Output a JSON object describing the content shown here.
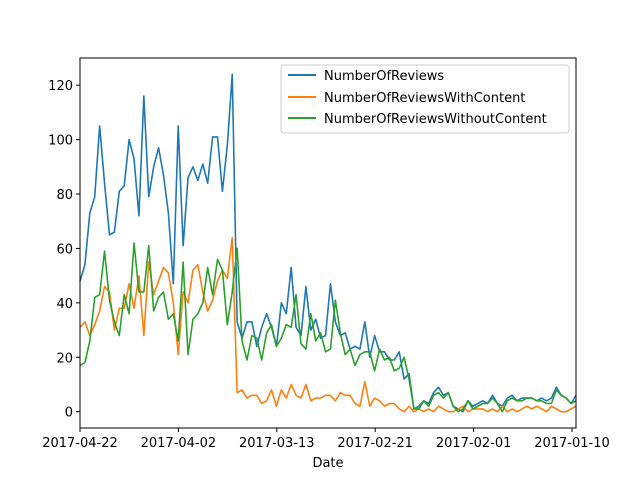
{
  "chart_data": {
    "type": "line",
    "xlabel": "Date",
    "ylabel": "",
    "x_axis_reversed": true,
    "x_ticks": [
      "2017-04-22",
      "2017-04-02",
      "2017-03-13",
      "2017-02-21",
      "2017-02-01",
      "2017-01-10"
    ],
    "y_ticks": [
      "0",
      "20",
      "40",
      "60",
      "80",
      "100",
      "120"
    ],
    "ylim": [
      -6,
      130
    ],
    "grid": false,
    "legend_position": "upper-right",
    "series": [
      {
        "name": "NumberOfReviews",
        "color": "#1f77b4",
        "values": [
          48,
          54,
          73,
          79,
          105,
          84,
          65,
          66,
          81,
          83,
          100,
          93,
          72,
          116,
          79,
          90,
          97,
          87,
          73,
          47,
          105,
          61,
          86,
          90,
          85,
          91,
          84,
          101,
          101,
          81,
          98,
          124,
          33,
          27,
          33,
          33,
          24,
          31,
          36,
          31,
          24,
          40,
          36,
          53,
          31,
          28,
          46,
          30,
          34,
          27,
          28,
          47,
          33,
          28,
          29,
          23,
          24,
          23,
          33,
          20,
          28,
          22,
          22,
          19,
          19,
          22,
          12,
          14,
          1,
          2,
          4,
          3,
          7,
          9,
          6,
          7,
          2,
          1,
          0,
          4,
          2,
          3,
          4,
          3,
          6,
          3,
          2,
          5,
          6,
          4,
          5,
          5,
          5,
          4,
          5,
          4,
          5,
          9,
          6,
          5,
          3,
          6
        ]
      },
      {
        "name": "NumberOfReviewsWithContent",
        "color": "#ff7f0e",
        "values": [
          31,
          33,
          28,
          32,
          37,
          46,
          44,
          30,
          38,
          38,
          47,
          38,
          50,
          28,
          55,
          43,
          48,
          53,
          51,
          40,
          21,
          44,
          40,
          52,
          54,
          44,
          37,
          41,
          48,
          52,
          49,
          64,
          7,
          8,
          5,
          6,
          6,
          3,
          4,
          8,
          2,
          8,
          5,
          10,
          6,
          5,
          10,
          4,
          5,
          5,
          6,
          6,
          4,
          7,
          6,
          6,
          3,
          2,
          11,
          2,
          5,
          4,
          2,
          3,
          3,
          1,
          0,
          2,
          0,
          1,
          0,
          1,
          0,
          2,
          1,
          0,
          0,
          1,
          2,
          0,
          1,
          1,
          1,
          0,
          1,
          0,
          2,
          0,
          1,
          0,
          1,
          2,
          1,
          2,
          1,
          0,
          2,
          1,
          0,
          0,
          1,
          2
        ]
      },
      {
        "name": "NumberOfReviewsWithoutContent",
        "color": "#2ca02c",
        "values": [
          17,
          18,
          26,
          42,
          43,
          59,
          41,
          33,
          28,
          43,
          36,
          62,
          44,
          44,
          61,
          37,
          42,
          44,
          34,
          36,
          26,
          55,
          21,
          34,
          36,
          40,
          53,
          43,
          56,
          52,
          32,
          44,
          60,
          26,
          19,
          28,
          27,
          19,
          29,
          32,
          24,
          27,
          32,
          31,
          43,
          25,
          23,
          36,
          26,
          29,
          22,
          23,
          41,
          29,
          21,
          23,
          17,
          21,
          22,
          22,
          15,
          23,
          19,
          20,
          15,
          16,
          20,
          12,
          1,
          1,
          4,
          2,
          6,
          7,
          5,
          7,
          2,
          0,
          1,
          4,
          1,
          2,
          3,
          3,
          5,
          3,
          0,
          4,
          5,
          4,
          4,
          5,
          5,
          4,
          4,
          3,
          3,
          8,
          6,
          5,
          3,
          4
        ]
      }
    ]
  }
}
